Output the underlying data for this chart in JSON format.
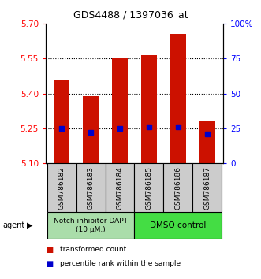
{
  "title": "GDS4488 / 1397036_at",
  "samples": [
    "GSM786182",
    "GSM786183",
    "GSM786184",
    "GSM786185",
    "GSM786186",
    "GSM786187"
  ],
  "transformed_counts": [
    5.46,
    5.39,
    5.555,
    5.565,
    5.655,
    5.28
  ],
  "percentile_ranks": [
    25,
    22,
    25,
    26,
    26,
    21
  ],
  "ylim_left": [
    5.1,
    5.7
  ],
  "ylim_right": [
    0,
    100
  ],
  "yticks_left": [
    5.1,
    5.25,
    5.4,
    5.55,
    5.7
  ],
  "yticks_right": [
    0,
    25,
    50,
    75,
    100
  ],
  "ytick_labels_right": [
    "0",
    "25",
    "50",
    "75",
    "100%"
  ],
  "bar_color": "#cc1100",
  "dot_color": "#0000cc",
  "baseline": 5.1,
  "group1_color": "#aaddaa",
  "group2_color": "#44dd44",
  "sample_box_color": "#cccccc",
  "grid_dotted_values": [
    5.25,
    5.4,
    5.55
  ],
  "legend_items": [
    {
      "color": "#cc1100",
      "label": "transformed count"
    },
    {
      "color": "#0000cc",
      "label": "percentile rank within the sample"
    }
  ],
  "agent_label": "agent"
}
